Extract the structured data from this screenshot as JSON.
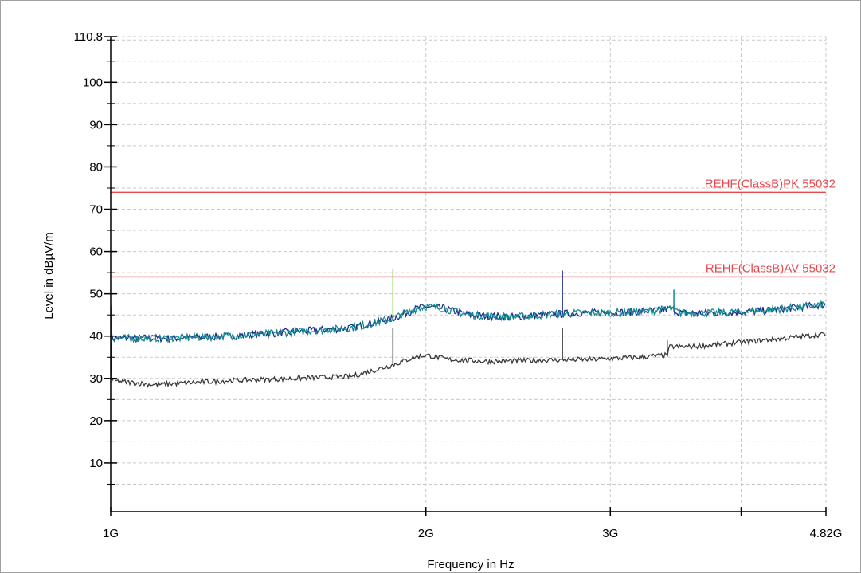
{
  "chart_data": {
    "type": "line",
    "title": "",
    "xlabel": "Frequency in Hz",
    "ylabel": "Level in dBµV/m",
    "x_scale": "log",
    "xlim": [
      1000000000,
      4820000000
    ],
    "ylim": [
      0,
      110.8
    ],
    "grid": true,
    "x_ticks": [
      {
        "value": 1000000000,
        "label": "1G"
      },
      {
        "value": 2000000000,
        "label": "2G"
      },
      {
        "value": 3000000000,
        "label": "3G"
      },
      {
        "value": 4820000000,
        "label": "4.82G"
      }
    ],
    "x_grid_extra": [
      4000000000
    ],
    "y_ticks": [
      {
        "value": 10,
        "label": "10"
      },
      {
        "value": 20,
        "label": "20"
      },
      {
        "value": 30,
        "label": "30"
      },
      {
        "value": 40,
        "label": "40"
      },
      {
        "value": 50,
        "label": "50"
      },
      {
        "value": 60,
        "label": "60"
      },
      {
        "value": 70,
        "label": "70"
      },
      {
        "value": 80,
        "label": "80"
      },
      {
        "value": 90,
        "label": "90"
      },
      {
        "value": 100,
        "label": "100"
      },
      {
        "value": 110.8,
        "label": "110.8"
      }
    ],
    "limit_lines": [
      {
        "label": "REHF(ClassB)PK 55032",
        "value": 74,
        "color": "#e8474c"
      },
      {
        "label": "REHF(ClassB)AV 55032",
        "value": 54,
        "color": "#e8474c"
      }
    ],
    "series": [
      {
        "style": "peak-trace-horizontal",
        "color": "#1c2f8c",
        "x": [
          1000000000,
          1150000000,
          1300000000,
          1500000000,
          1700000000,
          1850000000,
          1960000000,
          2000000000,
          2080000000,
          2200000000,
          2400000000,
          2600000000,
          2800000000,
          3000000000,
          3300000000,
          3420000000,
          3500000000,
          3800000000,
          4200000000,
          4600000000,
          4820000000
        ],
        "y": [
          39.5,
          39.5,
          40,
          41,
          42,
          44,
          46.5,
          47,
          46.5,
          45,
          44.5,
          45,
          45.5,
          45.5,
          46,
          46.5,
          45.5,
          45.5,
          46,
          47,
          47.5
        ]
      },
      {
        "style": "peak-trace-vertical",
        "color": "#138a8e",
        "x": [
          1000000000,
          1150000000,
          1300000000,
          1500000000,
          1700000000,
          1850000000,
          1960000000,
          2000000000,
          2080000000,
          2200000000,
          2400000000,
          2600000000,
          2800000000,
          3000000000,
          3300000000,
          3420000000,
          3500000000,
          3800000000,
          4200000000,
          4600000000,
          4820000000
        ],
        "y": [
          39.5,
          39.5,
          40,
          41,
          42,
          44,
          46.5,
          47,
          46.5,
          45,
          44.5,
          45,
          45.5,
          45.5,
          46,
          46.5,
          45.5,
          45.5,
          46,
          47,
          47.5
        ],
        "spikes": [
          {
            "x": 1860000000,
            "y": 56,
            "color": "#7fd04e"
          },
          {
            "x": 2700000000,
            "y": 55.5,
            "color": "#1c2f8c"
          },
          {
            "x": 3450000000,
            "y": 51,
            "color": "#138a8e"
          }
        ]
      },
      {
        "style": "average-trace",
        "color": "#3a3a3a",
        "x": [
          1000000000,
          1100000000,
          1300000000,
          1500000000,
          1700000000,
          1850000000,
          1950000000,
          2000000000,
          2100000000,
          2300000000,
          2600000000,
          2900000000,
          3200000000,
          3400000000,
          3420000000,
          3600000000,
          4000000000,
          4400000000,
          4820000000
        ],
        "y": [
          29.5,
          28.5,
          29.5,
          30,
          30.5,
          33,
          35,
          35.5,
          34.5,
          34,
          34.3,
          34.5,
          35,
          35.5,
          37.5,
          37.5,
          38.5,
          39.5,
          40.5
        ],
        "spikes": [
          {
            "x": 1860000000,
            "y": 42
          },
          {
            "x": 2700000000,
            "y": 42
          },
          {
            "x": 3400000000,
            "y": 39
          }
        ]
      }
    ]
  }
}
